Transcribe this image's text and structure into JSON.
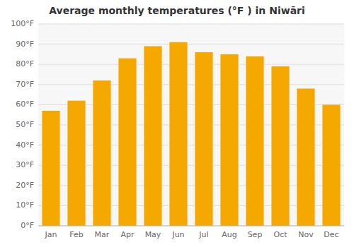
{
  "chart_data": {
    "type": "bar",
    "title": "Average monthly temperatures (°F ) in Niwāri",
    "categories": [
      "Jan",
      "Feb",
      "Mar",
      "Apr",
      "May",
      "Jun",
      "Jul",
      "Aug",
      "Sep",
      "Oct",
      "Nov",
      "Dec"
    ],
    "values": [
      57,
      62,
      72,
      83,
      89,
      91,
      86,
      85,
      84,
      79,
      68,
      60
    ],
    "color": "#F5A800",
    "ylim": [
      0,
      100
    ],
    "yticks": [
      {
        "value": 0,
        "label": "0°F"
      },
      {
        "value": 10,
        "label": "10°F"
      },
      {
        "value": 20,
        "label": "20°F"
      },
      {
        "value": 30,
        "label": "30°F"
      },
      {
        "value": 40,
        "label": "40°F"
      },
      {
        "value": 50,
        "label": "50°F"
      },
      {
        "value": 60,
        "label": "60°F"
      },
      {
        "value": 70,
        "label": "70°F"
      },
      {
        "value": 80,
        "label": "80°F"
      },
      {
        "value": 90,
        "label": "90°F"
      },
      {
        "value": 100,
        "label": "100°F"
      }
    ],
    "grid": true
  }
}
